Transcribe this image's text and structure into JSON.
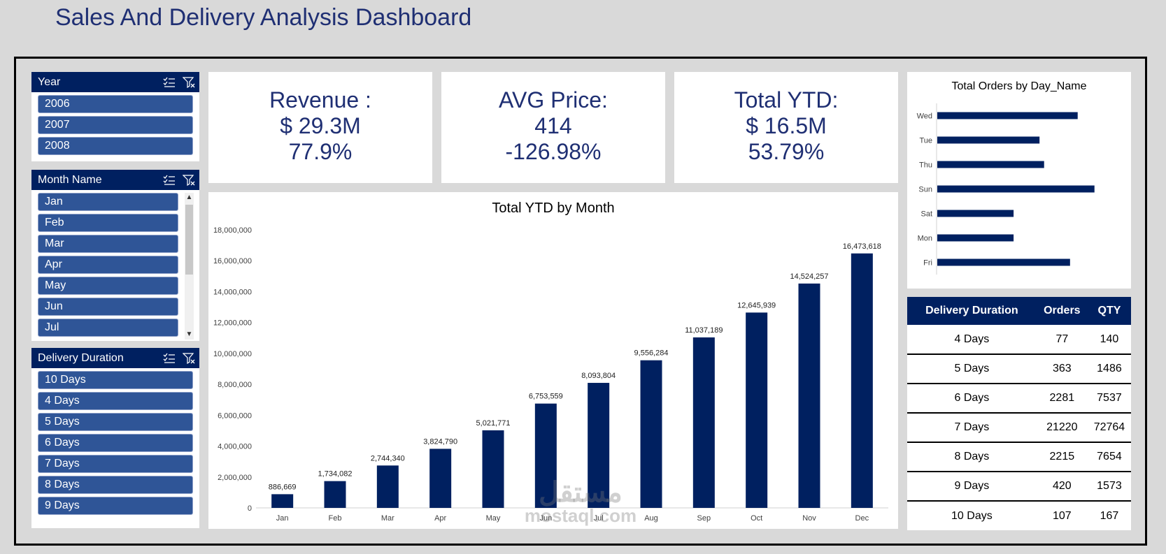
{
  "page": {
    "title": "Sales And Delivery Analysis Dashboard"
  },
  "colors": {
    "navy": "#002060",
    "slicer_item": "#2f5597",
    "title": "#1f2f73",
    "background": "#d9d9d9"
  },
  "slicers": {
    "year": {
      "title": "Year",
      "items": [
        "2006",
        "2007",
        "2008"
      ]
    },
    "month": {
      "title": "Month Name",
      "items": [
        "Jan",
        "Feb",
        "Mar",
        "Apr",
        "May",
        "Jun",
        "Jul"
      ]
    },
    "delivery": {
      "title": "Delivery Duration",
      "items": [
        "10 Days",
        "4 Days",
        "5 Days",
        "6 Days",
        "7 Days",
        "8 Days",
        "9 Days"
      ]
    },
    "icons": [
      "multi-select-icon",
      "clear-filter-icon"
    ]
  },
  "kpis": [
    {
      "label": "Revenue :",
      "value": "$ 29.3M",
      "pct": "77.9%"
    },
    {
      "label": "AVG Price:",
      "value": "414",
      "pct": "-126.98%"
    },
    {
      "label": "Total YTD:",
      "value": "$ 16.5M",
      "pct": "53.79%"
    }
  ],
  "chart_data": [
    {
      "type": "bar",
      "title": "Total YTD by Month",
      "categories": [
        "Jan",
        "Feb",
        "Mar",
        "Apr",
        "May",
        "Jun",
        "Jul",
        "Aug",
        "Sep",
        "Oct",
        "Nov",
        "Dec"
      ],
      "values": [
        886669,
        1734082,
        2744340,
        3824790,
        5021771,
        6753559,
        8093804,
        9556284,
        11037189,
        12645939,
        14524257,
        16473618
      ],
      "data_labels": [
        "886,669",
        "1,734,082",
        "2,744,340",
        "3,824,790",
        "5,021,771",
        "6,753,559",
        "8,093,804",
        "9,556,284",
        "11,037,189",
        "12,645,939",
        "14,524,257",
        "16,473,618"
      ],
      "yticks": [
        "0",
        "2,000,000",
        "4,000,000",
        "6,000,000",
        "8,000,000",
        "10,000,000",
        "12,000,000",
        "14,000,000",
        "16,000,000",
        "18,000,000"
      ],
      "ylim": [
        0,
        18000000
      ],
      "grid": false,
      "legend": "none"
    },
    {
      "type": "bar",
      "orientation": "horizontal",
      "title": "Total Orders by Day_Name",
      "categories": [
        "Wed",
        "Tue",
        "Thu",
        "Sun",
        "Sat",
        "Mon",
        "Fri"
      ],
      "values": [
        92,
        67,
        70,
        103,
        50,
        50,
        87
      ],
      "grid": false,
      "legend": "none"
    }
  ],
  "delivery_table": {
    "headers": [
      "Delivery Duration",
      "Orders",
      "QTY"
    ],
    "rows": [
      [
        "4 Days",
        "77",
        "140"
      ],
      [
        "5 Days",
        "363",
        "1486"
      ],
      [
        "6 Days",
        "2281",
        "7537"
      ],
      [
        "7 Days",
        "21220",
        "72764"
      ],
      [
        "8 Days",
        "2215",
        "7654"
      ],
      [
        "9 Days",
        "420",
        "1573"
      ],
      [
        "10 Days",
        "107",
        "167"
      ]
    ]
  },
  "watermark": {
    "arabic": "مستقل",
    "latin": "mostaql.com"
  }
}
